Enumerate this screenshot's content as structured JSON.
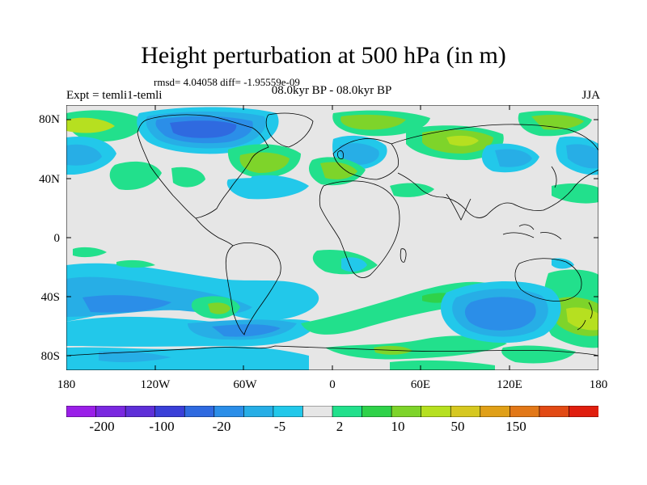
{
  "title": "Height perturbation at 500 hPa (in m)",
  "stats": "rmsd= 4.04058 diff= -1.95559e-09",
  "experiment": "Expt = temli1-temli",
  "period": "08.0kyr BP - 08.0kyr BP",
  "season": "JJA",
  "lat_labels": [
    "80N",
    "40N",
    "0",
    "40S",
    "80S"
  ],
  "lon_labels": [
    "180",
    "120W",
    "60W",
    "0",
    "60E",
    "120E",
    "180"
  ],
  "colorbar": {
    "labels": [
      "-200",
      "-100",
      "-20",
      "-5",
      "2",
      "10",
      "50",
      "150"
    ],
    "colors": [
      "#9a1fe8",
      "#7a28e0",
      "#5e2fd8",
      "#3a3fd8",
      "#2f6ae0",
      "#2b8ee8",
      "#27aee6",
      "#22c8ea",
      "#e6e6e6",
      "#22e08c",
      "#2fd24a",
      "#7ed42a",
      "#b6e020",
      "#d6c820",
      "#e0a018",
      "#e27818",
      "#e24a14",
      "#e01e0e"
    ]
  },
  "colors": {
    "background": "#e6e6e6",
    "coast": "#000000"
  }
}
